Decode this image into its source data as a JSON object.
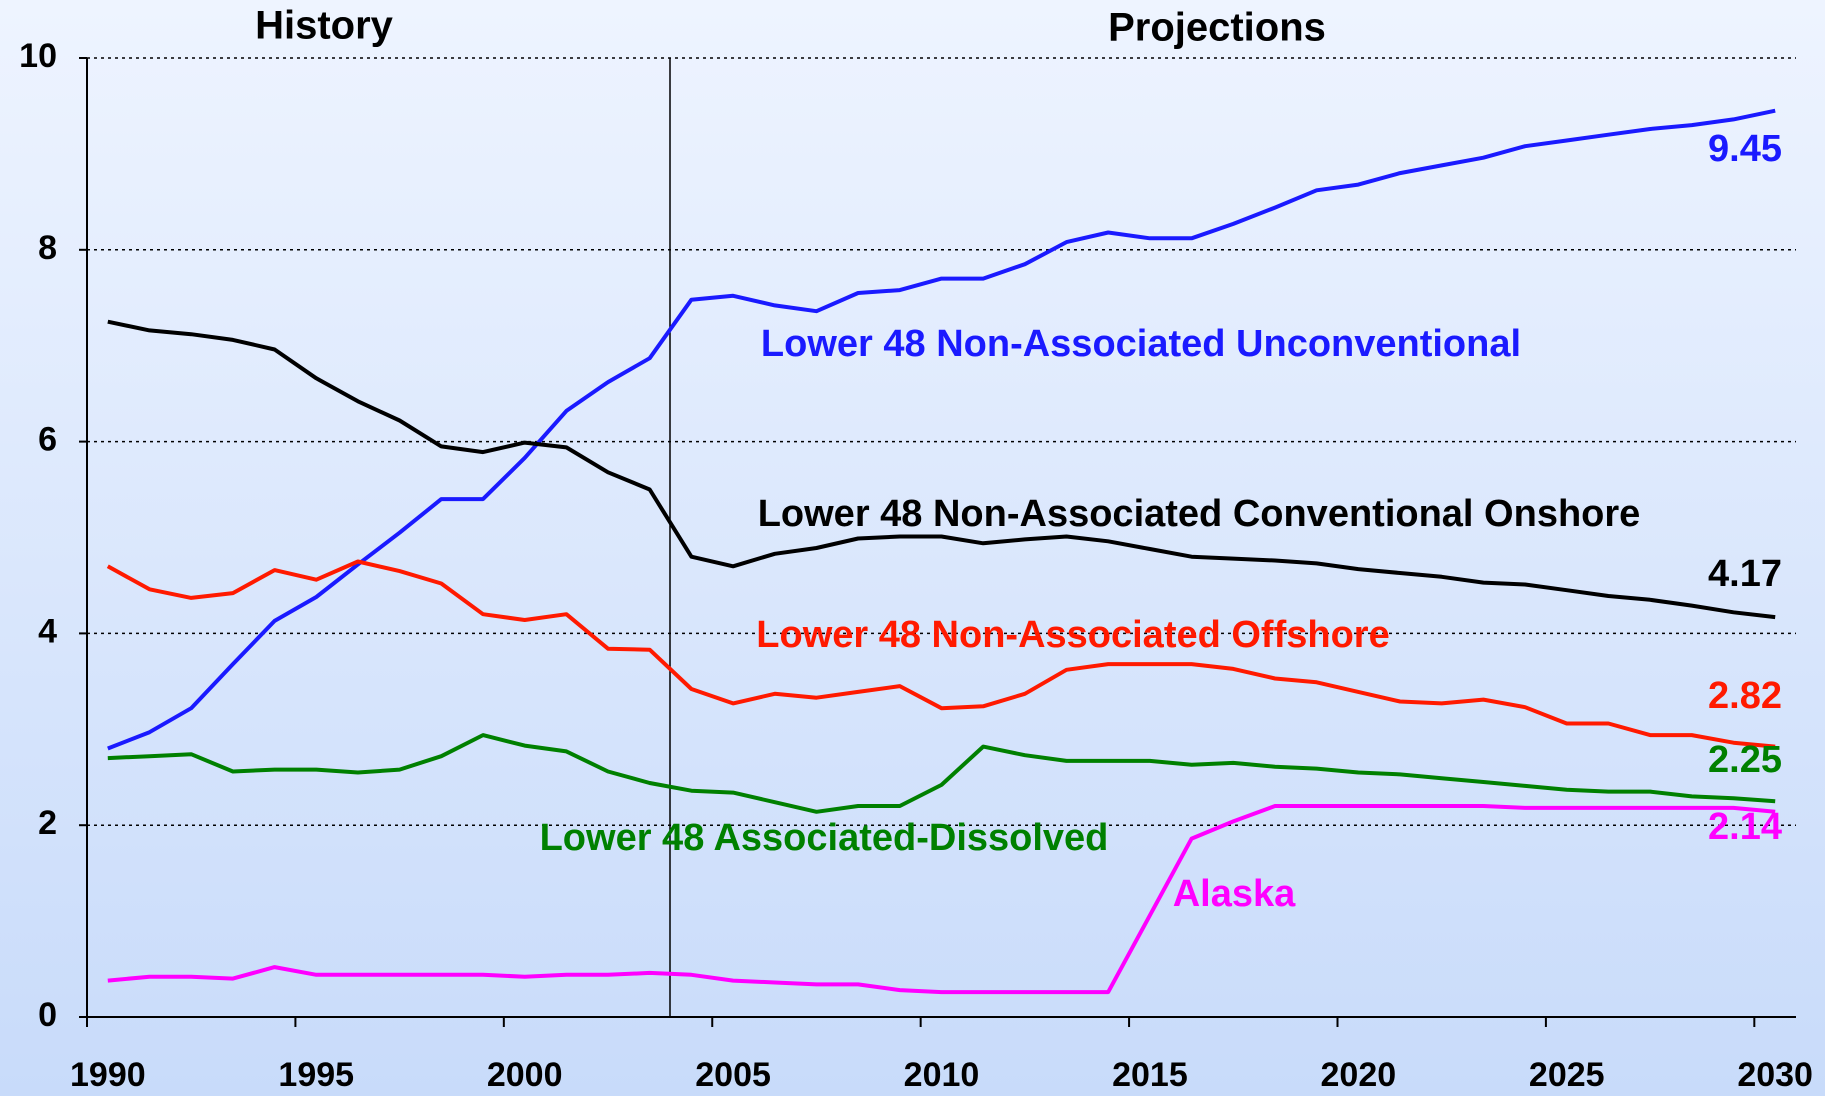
{
  "chart_data": {
    "type": "line",
    "annotations": [
      "History",
      "Projections"
    ],
    "categories": [
      "1990",
      null,
      null,
      null,
      null,
      "1995",
      null,
      null,
      null,
      null,
      "2000",
      null,
      null,
      null,
      null,
      "2005",
      null,
      null,
      null,
      null,
      "2010",
      null,
      null,
      null,
      null,
      "2015",
      null,
      null,
      null,
      null,
      "2020",
      null,
      null,
      null,
      null,
      "2025",
      null,
      null,
      null,
      null,
      "2030"
    ],
    "series": [
      {
        "name": "Lower 48 Non-Associated Unconventional",
        "color": "#1a1aff",
        "values": [
          2.8,
          2.97,
          3.22,
          3.68,
          4.13,
          4.38,
          4.72,
          5.05,
          5.4,
          5.4,
          5.83,
          6.32,
          6.62,
          6.87,
          7.48,
          7.52,
          7.42,
          7.36,
          7.55,
          7.58,
          7.7,
          7.7,
          7.85,
          8.08,
          8.18,
          8.12,
          8.12,
          8.27,
          8.44,
          8.62,
          8.68,
          8.8,
          8.88,
          8.96,
          9.08,
          9.14,
          9.2,
          9.26,
          9.3,
          9.36,
          9.45
        ]
      },
      {
        "name": "Lower 48 Non-Associated Conventional Onshore",
        "color": "#000000",
        "values": [
          7.25,
          7.16,
          7.12,
          7.06,
          6.96,
          6.66,
          6.42,
          6.22,
          5.95,
          5.89,
          5.99,
          5.94,
          5.68,
          5.5,
          4.8,
          4.7,
          4.83,
          4.89,
          4.99,
          5.01,
          5.01,
          4.94,
          4.98,
          5.01,
          4.96,
          4.88,
          4.8,
          4.78,
          4.76,
          4.73,
          4.67,
          4.63,
          4.59,
          4.53,
          4.51,
          4.45,
          4.39,
          4.35,
          4.29,
          4.22,
          4.17
        ]
      },
      {
        "name": "Lower 48 Non-Associated Offshore",
        "color": "#ff1a00",
        "values": [
          4.7,
          4.46,
          4.37,
          4.42,
          4.66,
          4.56,
          4.75,
          4.65,
          4.52,
          4.2,
          4.14,
          4.2,
          3.84,
          3.83,
          3.42,
          3.27,
          3.37,
          3.33,
          3.39,
          3.45,
          3.22,
          3.24,
          3.37,
          3.62,
          3.68,
          3.68,
          3.68,
          3.63,
          3.53,
          3.49,
          3.39,
          3.29,
          3.27,
          3.31,
          3.23,
          3.06,
          3.06,
          2.94,
          2.94,
          2.86,
          2.82
        ]
      },
      {
        "name": "Lower 48 Associated-Dissolved",
        "color": "#008000",
        "values": [
          2.7,
          2.72,
          2.74,
          2.56,
          2.58,
          2.58,
          2.55,
          2.58,
          2.72,
          2.94,
          2.83,
          2.77,
          2.56,
          2.44,
          2.36,
          2.34,
          2.24,
          2.14,
          2.2,
          2.2,
          2.42,
          2.82,
          2.73,
          2.67,
          2.67,
          2.67,
          2.63,
          2.65,
          2.61,
          2.59,
          2.55,
          2.53,
          2.49,
          2.45,
          2.41,
          2.37,
          2.35,
          2.35,
          2.3,
          2.28,
          2.25
        ]
      },
      {
        "name": "Alaska",
        "color": "#ff00ff",
        "values": [
          0.38,
          0.42,
          0.42,
          0.4,
          0.52,
          0.44,
          0.44,
          0.44,
          0.44,
          0.44,
          0.42,
          0.44,
          0.44,
          0.46,
          0.44,
          0.38,
          0.36,
          0.34,
          0.34,
          0.28,
          0.26,
          0.26,
          0.26,
          0.26,
          0.26,
          1.06,
          1.86,
          2.04,
          2.2,
          2.2,
          2.2,
          2.2,
          2.2,
          2.2,
          2.18,
          2.18,
          2.18,
          2.18,
          2.18,
          2.18,
          2.14
        ]
      }
    ],
    "ylim": [
      0,
      10
    ],
    "yticks": [
      0,
      2,
      4,
      6,
      8,
      10
    ],
    "grid": true
  }
}
